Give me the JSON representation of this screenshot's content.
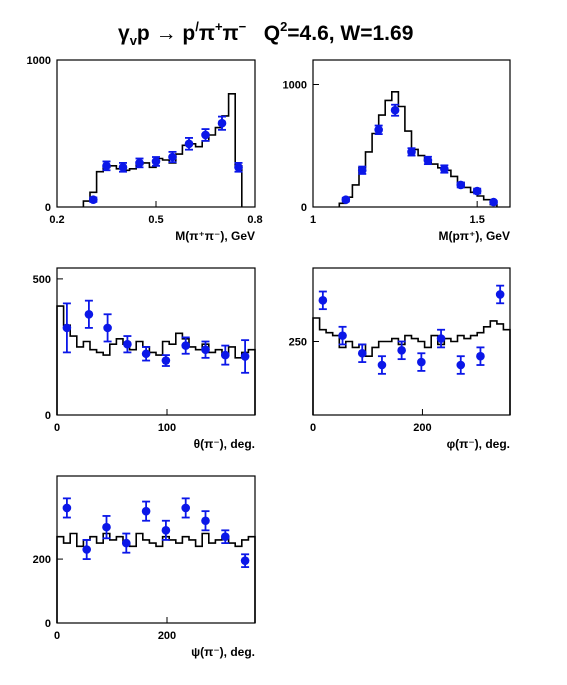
{
  "header": {
    "title_parts": [
      "γ",
      "v",
      "p → p",
      "/",
      "π",
      "+",
      "π",
      "−",
      "   Q",
      "2",
      "=4.6, W=1.69"
    ]
  },
  "colors": {
    "histogram": "#000000",
    "points": "#0b17e8",
    "frame": "#000000"
  },
  "chart_data": [
    {
      "id": "m-pipi",
      "type": "scatter",
      "xlabel": "M(π⁺π⁻), GeV",
      "xlim": [
        0.2,
        0.8
      ],
      "ylim": [
        0,
        1000
      ],
      "xticks": [
        0.2,
        0.5,
        0.8
      ],
      "xtick_labels": [
        "0.2",
        "0.5",
        "0.8"
      ],
      "yticks": [
        0,
        1000
      ],
      "ytick_labels": [
        "0",
        "1000"
      ],
      "histogram": {
        "edges": [
          0.28,
          0.3,
          0.32,
          0.34,
          0.36,
          0.38,
          0.4,
          0.42,
          0.44,
          0.46,
          0.48,
          0.5,
          0.52,
          0.54,
          0.56,
          0.58,
          0.6,
          0.62,
          0.64,
          0.66,
          0.68,
          0.7,
          0.72,
          0.74,
          0.76
        ],
        "values": [
          40,
          100,
          240,
          270,
          280,
          260,
          250,
          260,
          290,
          300,
          270,
          330,
          320,
          300,
          360,
          420,
          430,
          410,
          450,
          490,
          540,
          620,
          770,
          280
        ]
      },
      "points": {
        "x": [
          0.31,
          0.35,
          0.4,
          0.45,
          0.5,
          0.55,
          0.6,
          0.65,
          0.7,
          0.75
        ],
        "y": [
          50,
          280,
          270,
          300,
          310,
          340,
          430,
          490,
          570,
          270
        ],
        "yerr": [
          15,
          30,
          30,
          30,
          30,
          35,
          40,
          40,
          45,
          30
        ]
      }
    },
    {
      "id": "m-ppi",
      "type": "scatter",
      "xlabel": "M(pπ⁺), GeV",
      "xlim": [
        1.0,
        1.6
      ],
      "ylim": [
        0,
        1200
      ],
      "xticks": [
        1.0,
        1.5
      ],
      "xtick_labels": [
        "1",
        "1.5"
      ],
      "yticks": [
        0,
        1000
      ],
      "ytick_labels": [
        "0",
        "1000"
      ],
      "histogram": {
        "edges": [
          1.08,
          1.1,
          1.12,
          1.14,
          1.16,
          1.18,
          1.2,
          1.22,
          1.24,
          1.26,
          1.28,
          1.3,
          1.32,
          1.34,
          1.36,
          1.38,
          1.4,
          1.42,
          1.44,
          1.46,
          1.48,
          1.5,
          1.52,
          1.54,
          1.56
        ],
        "values": [
          30,
          80,
          180,
          320,
          450,
          600,
          750,
          870,
          940,
          820,
          620,
          470,
          420,
          380,
          350,
          320,
          300,
          250,
          200,
          160,
          120,
          90,
          60,
          20
        ]
      },
      "points": {
        "x": [
          1.1,
          1.15,
          1.2,
          1.25,
          1.3,
          1.35,
          1.4,
          1.45,
          1.5,
          1.55
        ],
        "y": [
          60,
          300,
          630,
          790,
          450,
          380,
          310,
          180,
          130,
          40
        ],
        "yerr": [
          15,
          30,
          35,
          45,
          30,
          30,
          30,
          20,
          20,
          10
        ]
      }
    },
    {
      "id": "theta",
      "type": "scatter",
      "xlabel": "θ(π⁻), deg.",
      "xlim": [
        0,
        180
      ],
      "ylim": [
        0,
        540
      ],
      "xticks": [
        0,
        100
      ],
      "xtick_labels": [
        "0",
        "100"
      ],
      "yticks": [
        0,
        500
      ],
      "ytick_labels": [
        "0",
        "500"
      ],
      "histogram": {
        "edges": [
          0,
          6,
          12,
          18,
          24,
          30,
          36,
          42,
          48,
          54,
          60,
          66,
          72,
          78,
          84,
          90,
          96,
          102,
          108,
          114,
          120,
          126,
          132,
          138,
          144,
          150,
          156,
          162,
          168,
          174,
          180
        ],
        "values": [
          400,
          330,
          290,
          250,
          270,
          240,
          230,
          220,
          260,
          280,
          260,
          240,
          270,
          250,
          230,
          220,
          270,
          260,
          300,
          280,
          250,
          240,
          260,
          230,
          240,
          220,
          250,
          210,
          230,
          240
        ]
      },
      "points": {
        "x": [
          9,
          29,
          46,
          64,
          81,
          99,
          117,
          135,
          153,
          171
        ],
        "y": [
          320,
          370,
          320,
          260,
          225,
          200,
          255,
          240,
          220,
          215
        ],
        "yerr": [
          90,
          50,
          50,
          30,
          25,
          20,
          30,
          30,
          35,
          60
        ]
      }
    },
    {
      "id": "phi",
      "type": "scatter",
      "xlabel": "φ(π⁻), deg.",
      "xlim": [
        0,
        360
      ],
      "ylim": [
        0,
        500
      ],
      "xticks": [
        0,
        200
      ],
      "xtick_labels": [
        "0",
        "200"
      ],
      "yticks": [
        250
      ],
      "ytick_labels": [
        "250"
      ],
      "histogram": {
        "edges": [
          0,
          12,
          24,
          36,
          48,
          60,
          72,
          84,
          96,
          108,
          120,
          132,
          144,
          156,
          168,
          180,
          192,
          204,
          216,
          228,
          240,
          252,
          264,
          276,
          288,
          300,
          312,
          324,
          336,
          348,
          360
        ],
        "values": [
          330,
          290,
          280,
          270,
          230,
          250,
          230,
          240,
          200,
          230,
          250,
          250,
          260,
          240,
          270,
          260,
          250,
          230,
          270,
          240,
          260,
          250,
          270,
          260,
          270,
          280,
          300,
          320,
          310,
          290
        ]
      },
      "points": {
        "x": [
          18,
          54,
          90,
          126,
          162,
          198,
          234,
          270,
          306,
          342
        ],
        "y": [
          390,
          270,
          210,
          170,
          220,
          180,
          260,
          170,
          200,
          410
        ],
        "yerr": [
          30,
          30,
          30,
          30,
          30,
          30,
          30,
          30,
          30,
          30
        ]
      }
    },
    {
      "id": "psi",
      "type": "scatter",
      "xlabel": "ψ(π⁻), deg.",
      "xlim": [
        0,
        360
      ],
      "ylim": [
        0,
        460
      ],
      "xticks": [
        0,
        200
      ],
      "xtick_labels": [
        "0",
        "200"
      ],
      "yticks": [
        0,
        200
      ],
      "ytick_labels": [
        "0",
        "200"
      ],
      "histogram": {
        "edges": [
          0,
          12,
          24,
          36,
          48,
          60,
          72,
          84,
          96,
          108,
          120,
          132,
          144,
          156,
          168,
          180,
          192,
          204,
          216,
          228,
          240,
          252,
          264,
          276,
          288,
          300,
          312,
          324,
          336,
          348,
          360
        ],
        "values": [
          270,
          250,
          280,
          240,
          260,
          270,
          250,
          280,
          260,
          270,
          250,
          240,
          280,
          260,
          250,
          240,
          270,
          260,
          250,
          270,
          260,
          240,
          280,
          250,
          260,
          270,
          250,
          240,
          260,
          270
        ]
      },
      "points": {
        "x": [
          18,
          54,
          90,
          126,
          162,
          198,
          234,
          270,
          306,
          342
        ],
        "y": [
          360,
          230,
          300,
          250,
          350,
          290,
          360,
          320,
          270,
          195
        ],
        "yerr": [
          30,
          30,
          35,
          30,
          30,
          30,
          30,
          30,
          20,
          20
        ]
      }
    }
  ]
}
